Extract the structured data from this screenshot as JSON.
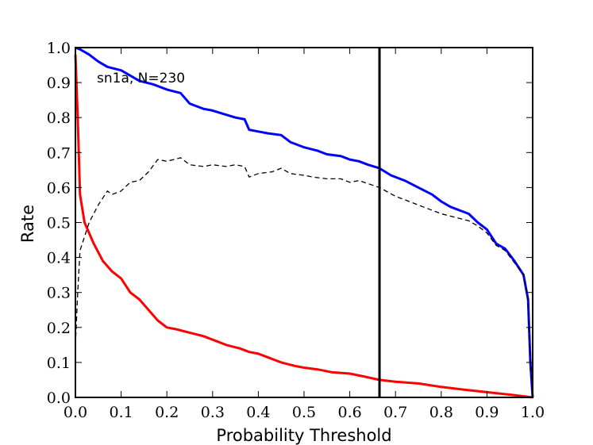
{
  "chart_data": {
    "type": "line",
    "annotation": "sn1a, N=230",
    "xlabel": "Probability Threshold",
    "ylabel": "Rate",
    "xlim": [
      0.0,
      1.0
    ],
    "ylim": [
      0.0,
      1.0
    ],
    "x_ticks": [
      "0.0",
      "0.1",
      "0.2",
      "0.3",
      "0.4",
      "0.5",
      "0.6",
      "0.7",
      "0.8",
      "0.9",
      "1.0"
    ],
    "y_ticks": [
      "0.0",
      "0.1",
      "0.2",
      "0.3",
      "0.4",
      "0.5",
      "0.6",
      "0.7",
      "0.8",
      "0.9",
      "1.0"
    ],
    "grid": false,
    "threshold_line_x": 0.665,
    "series": [
      {
        "color": "#0000ff",
        "style": "solid",
        "points": [
          [
            0.0,
            1.0
          ],
          [
            0.01,
            0.995
          ],
          [
            0.03,
            0.98
          ],
          [
            0.05,
            0.96
          ],
          [
            0.07,
            0.945
          ],
          [
            0.1,
            0.935
          ],
          [
            0.12,
            0.92
          ],
          [
            0.14,
            0.905
          ],
          [
            0.17,
            0.895
          ],
          [
            0.2,
            0.88
          ],
          [
            0.23,
            0.87
          ],
          [
            0.25,
            0.84
          ],
          [
            0.28,
            0.825
          ],
          [
            0.3,
            0.82
          ],
          [
            0.35,
            0.8
          ],
          [
            0.37,
            0.795
          ],
          [
            0.38,
            0.765
          ],
          [
            0.4,
            0.76
          ],
          [
            0.42,
            0.755
          ],
          [
            0.45,
            0.75
          ],
          [
            0.47,
            0.73
          ],
          [
            0.5,
            0.715
          ],
          [
            0.53,
            0.705
          ],
          [
            0.55,
            0.695
          ],
          [
            0.58,
            0.69
          ],
          [
            0.6,
            0.68
          ],
          [
            0.62,
            0.675
          ],
          [
            0.64,
            0.665
          ],
          [
            0.665,
            0.655
          ],
          [
            0.69,
            0.635
          ],
          [
            0.72,
            0.62
          ],
          [
            0.75,
            0.6
          ],
          [
            0.78,
            0.58
          ],
          [
            0.8,
            0.56
          ],
          [
            0.82,
            0.545
          ],
          [
            0.84,
            0.535
          ],
          [
            0.86,
            0.525
          ],
          [
            0.88,
            0.5
          ],
          [
            0.9,
            0.48
          ],
          [
            0.92,
            0.44
          ],
          [
            0.94,
            0.425
          ],
          [
            0.96,
            0.39
          ],
          [
            0.98,
            0.35
          ],
          [
            0.99,
            0.28
          ],
          [
            0.995,
            0.1
          ],
          [
            1.0,
            0.0
          ]
        ]
      },
      {
        "color": "#ff0000",
        "style": "solid",
        "points": [
          [
            0.0,
            0.98
          ],
          [
            0.005,
            0.8
          ],
          [
            0.01,
            0.58
          ],
          [
            0.02,
            0.5
          ],
          [
            0.04,
            0.44
          ],
          [
            0.06,
            0.39
          ],
          [
            0.08,
            0.36
          ],
          [
            0.1,
            0.34
          ],
          [
            0.12,
            0.3
          ],
          [
            0.14,
            0.28
          ],
          [
            0.16,
            0.25
          ],
          [
            0.18,
            0.22
          ],
          [
            0.2,
            0.2
          ],
          [
            0.22,
            0.195
          ],
          [
            0.25,
            0.185
          ],
          [
            0.28,
            0.175
          ],
          [
            0.3,
            0.165
          ],
          [
            0.33,
            0.15
          ],
          [
            0.36,
            0.14
          ],
          [
            0.38,
            0.13
          ],
          [
            0.4,
            0.125
          ],
          [
            0.42,
            0.115
          ],
          [
            0.45,
            0.1
          ],
          [
            0.48,
            0.09
          ],
          [
            0.5,
            0.085
          ],
          [
            0.53,
            0.08
          ],
          [
            0.56,
            0.072
          ],
          [
            0.6,
            0.068
          ],
          [
            0.63,
            0.06
          ],
          [
            0.665,
            0.05
          ],
          [
            0.7,
            0.045
          ],
          [
            0.75,
            0.04
          ],
          [
            0.8,
            0.03
          ],
          [
            0.85,
            0.022
          ],
          [
            0.9,
            0.015
          ],
          [
            0.95,
            0.008
          ],
          [
            1.0,
            0.0
          ]
        ]
      },
      {
        "color": "#000000",
        "style": "dashed",
        "points": [
          [
            0.0,
            0.15
          ],
          [
            0.005,
            0.3
          ],
          [
            0.01,
            0.42
          ],
          [
            0.03,
            0.5
          ],
          [
            0.05,
            0.55
          ],
          [
            0.07,
            0.59
          ],
          [
            0.08,
            0.58
          ],
          [
            0.1,
            0.59
          ],
          [
            0.12,
            0.615
          ],
          [
            0.14,
            0.62
          ],
          [
            0.16,
            0.645
          ],
          [
            0.18,
            0.68
          ],
          [
            0.2,
            0.675
          ],
          [
            0.23,
            0.685
          ],
          [
            0.25,
            0.665
          ],
          [
            0.28,
            0.66
          ],
          [
            0.3,
            0.665
          ],
          [
            0.33,
            0.66
          ],
          [
            0.35,
            0.665
          ],
          [
            0.37,
            0.66
          ],
          [
            0.38,
            0.63
          ],
          [
            0.4,
            0.64
          ],
          [
            0.43,
            0.645
          ],
          [
            0.45,
            0.655
          ],
          [
            0.47,
            0.64
          ],
          [
            0.5,
            0.635
          ],
          [
            0.52,
            0.63
          ],
          [
            0.55,
            0.625
          ],
          [
            0.58,
            0.625
          ],
          [
            0.6,
            0.615
          ],
          [
            0.62,
            0.62
          ],
          [
            0.665,
            0.6
          ],
          [
            0.7,
            0.575
          ],
          [
            0.73,
            0.56
          ],
          [
            0.76,
            0.545
          ],
          [
            0.8,
            0.525
          ],
          [
            0.83,
            0.515
          ],
          [
            0.86,
            0.505
          ],
          [
            0.88,
            0.49
          ],
          [
            0.9,
            0.47
          ],
          [
            0.92,
            0.435
          ],
          [
            0.94,
            0.42
          ],
          [
            0.96,
            0.385
          ],
          [
            0.98,
            0.35
          ],
          [
            0.99,
            0.28
          ],
          [
            0.995,
            0.1
          ],
          [
            1.0,
            0.0
          ]
        ]
      }
    ]
  }
}
